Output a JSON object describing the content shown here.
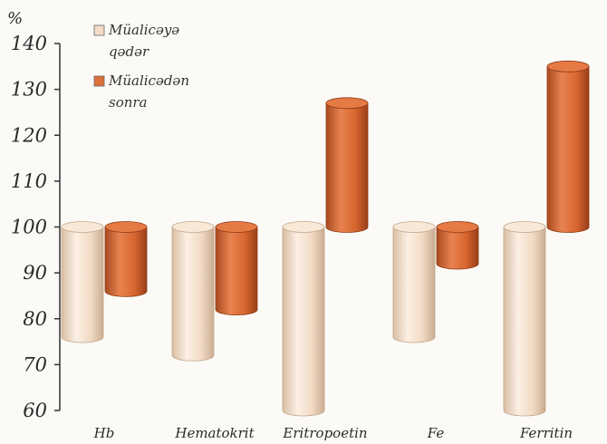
{
  "chart_data": {
    "type": "bar",
    "style": "3d-cylinder-floating",
    "unit_label": "%",
    "title": "",
    "xlabel": "",
    "ylabel": "",
    "ylim": [
      60,
      140
    ],
    "yticks": [
      60,
      70,
      80,
      90,
      100,
      110,
      120,
      130,
      140
    ],
    "categories": [
      "Hb",
      "Hematokrit",
      "Eritropoetin",
      "Fe",
      "Ferritin"
    ],
    "baseline": 100,
    "series": [
      {
        "name": "Müalicəyə qədər",
        "legend_lines": [
          "Müalicəyə",
          "qədər"
        ],
        "color": "#f3dcc6",
        "values": [
          76,
          72,
          60,
          76,
          60
        ]
      },
      {
        "name": "Müalicədən sonra",
        "legend_lines": [
          "Müalicədən",
          "sonra"
        ],
        "color": "#dd6f3a",
        "values": [
          86,
          82,
          127,
          92,
          135
        ]
      }
    ],
    "grid": false,
    "legend_position": "top-left"
  }
}
